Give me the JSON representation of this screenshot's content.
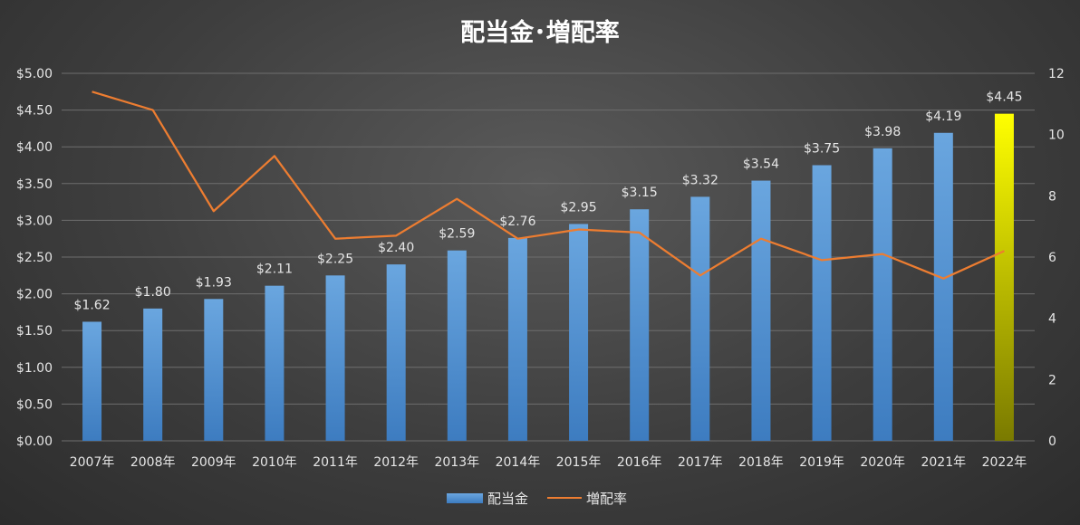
{
  "chart_data": {
    "type": "bar",
    "title": "配当金･増配率",
    "categories": [
      "2007年",
      "2008年",
      "2009年",
      "2010年",
      "2011年",
      "2012年",
      "2013年",
      "2014年",
      "2015年",
      "2016年",
      "2017年",
      "2018年",
      "2019年",
      "2020年",
      "2021年",
      "2022年"
    ],
    "series": [
      {
        "name": "配当金",
        "type": "bar",
        "axis": "left",
        "values": [
          1.62,
          1.8,
          1.93,
          2.11,
          2.25,
          2.4,
          2.59,
          2.76,
          2.95,
          3.15,
          3.32,
          3.54,
          3.75,
          3.98,
          4.19,
          4.45
        ],
        "data_labels": [
          "$1.62",
          "$1.80",
          "$1.93",
          "$2.11",
          "$2.25",
          "$2.40",
          "$2.59",
          "$2.76",
          "$2.95",
          "$3.15",
          "$3.32",
          "$3.54",
          "$3.75",
          "$3.98",
          "$4.19",
          "$4.45"
        ],
        "color": "#5b9bd5",
        "highlight_index": 15,
        "highlight_color": "#ffff00"
      },
      {
        "name": "増配率",
        "type": "line",
        "axis": "right",
        "values": [
          11.4,
          10.8,
          7.5,
          9.3,
          6.6,
          6.7,
          7.9,
          6.6,
          6.9,
          6.8,
          5.4,
          6.6,
          5.9,
          6.1,
          5.3,
          6.2
        ],
        "color": "#ed7d31"
      }
    ],
    "left_axis": {
      "ylim": [
        0,
        5
      ],
      "ticks": [
        0,
        0.5,
        1,
        1.5,
        2,
        2.5,
        3,
        3.5,
        4,
        4.5,
        5
      ],
      "tick_labels": [
        "$0.00",
        "$0.50",
        "$1.00",
        "$1.50",
        "$2.00",
        "$2.50",
        "$3.00",
        "$3.50",
        "$4.00",
        "$4.50",
        "$5.00"
      ]
    },
    "right_axis": {
      "ylim": [
        0,
        12
      ],
      "ticks": [
        0,
        2,
        4,
        6,
        8,
        10,
        12
      ],
      "tick_labels": [
        "0",
        "2",
        "4",
        "6",
        "8",
        "10",
        "12"
      ]
    },
    "grid": true,
    "legend_position": "bottom"
  }
}
